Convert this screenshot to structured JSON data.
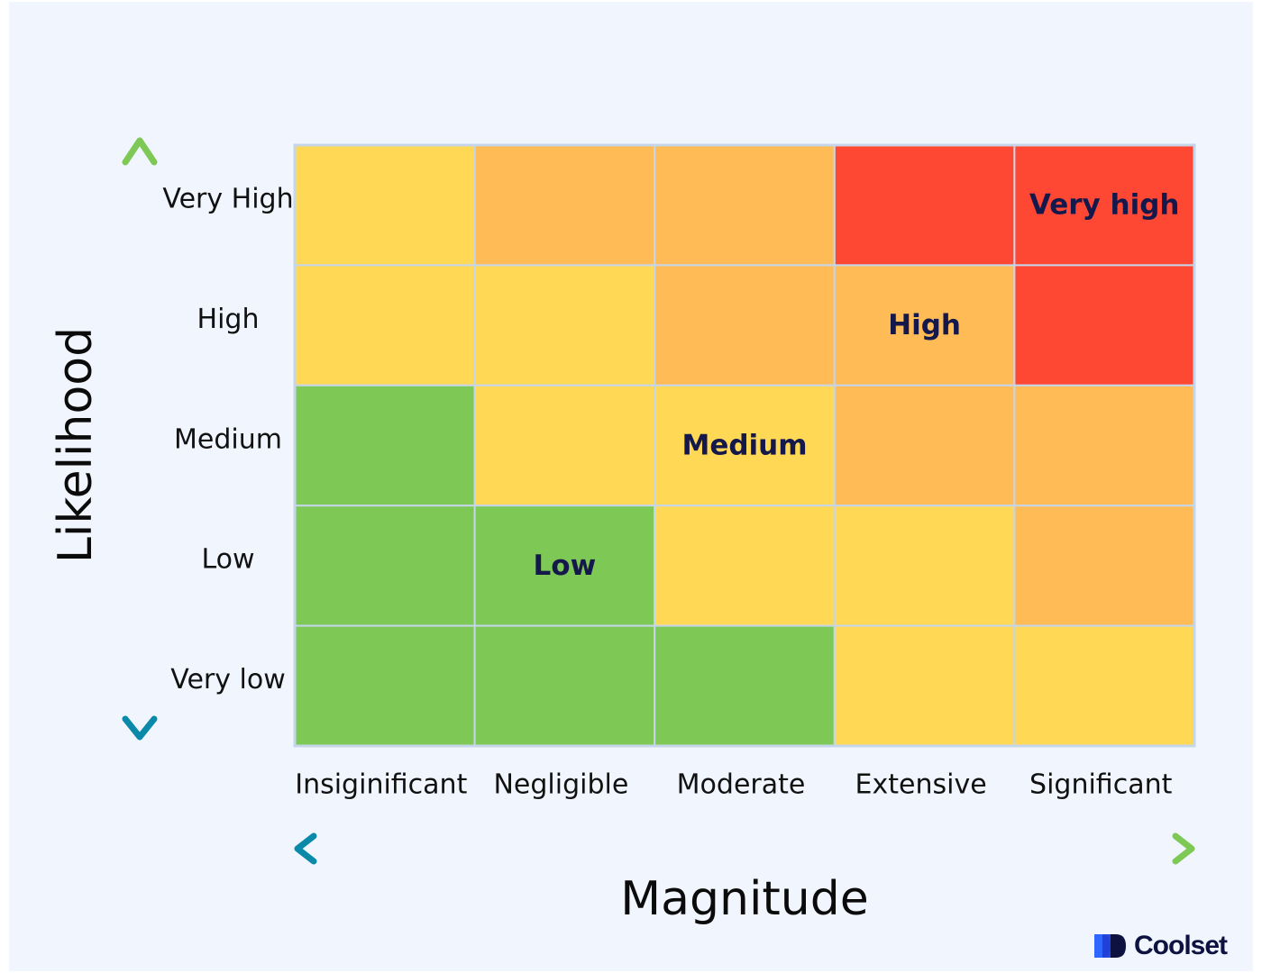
{
  "chart_data": {
    "type": "heatmap",
    "title": "",
    "xlabel": "Magnitude",
    "ylabel": "Likelihood",
    "x_categories": [
      "Insiginificant",
      "Negligible",
      "Moderate",
      "Extensive",
      "Significant"
    ],
    "y_categories": [
      "Very High",
      "High",
      "Medium",
      "Low",
      "Very low"
    ],
    "levels": {
      "low": "#7ec856",
      "medium": "#ffd856",
      "high": "#ffbb56",
      "very_high": "#ff4833"
    },
    "matrix": [
      [
        "medium",
        "high",
        "high",
        "very_high",
        "very_high"
      ],
      [
        "medium",
        "medium",
        "high",
        "high",
        "very_high"
      ],
      [
        "low",
        "medium",
        "medium",
        "high",
        "high"
      ],
      [
        "low",
        "low",
        "medium",
        "medium",
        "high"
      ],
      [
        "low",
        "low",
        "low",
        "medium",
        "medium"
      ]
    ],
    "cell_labels": [
      {
        "row": 0,
        "col": 4,
        "text": "Very high"
      },
      {
        "row": 1,
        "col": 3,
        "text": "High"
      },
      {
        "row": 2,
        "col": 2,
        "text": "Medium"
      },
      {
        "row": 3,
        "col": 1,
        "text": "Low"
      }
    ],
    "grid_line_color": "#c6d6ea",
    "y_arrow_colors": [
      "#7ec856",
      "#0a8aa8"
    ],
    "x_arrow_colors": [
      "#0a8aa8",
      "#7ec856"
    ]
  },
  "brand": {
    "name": "Coolset",
    "icon": "coolset-logo-icon",
    "color": "#0d1240"
  }
}
